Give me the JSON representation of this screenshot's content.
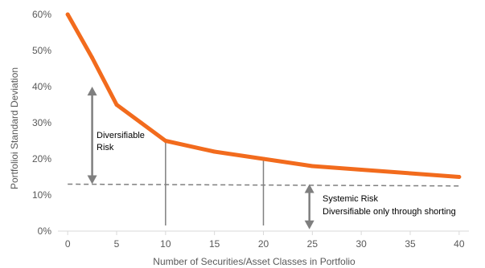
{
  "chart_data": {
    "type": "line",
    "title": "",
    "xlabel": "Number of Securities/Asset Classes in Portfolio",
    "ylabel": "Portfolioi Standard Deviation",
    "xlim": [
      -1,
      41
    ],
    "ylim": [
      0,
      60
    ],
    "x_ticks": [
      0,
      5,
      10,
      15,
      20,
      25,
      30,
      35,
      40
    ],
    "x_tick_labels": [
      "0",
      "5",
      "10",
      "15",
      "20",
      "25",
      "30",
      "35",
      "40"
    ],
    "y_ticks": [
      0,
      10,
      20,
      30,
      40,
      50,
      60
    ],
    "y_tick_labels": [
      "0%",
      "10%",
      "20%",
      "30%",
      "40%",
      "50%",
      "60%"
    ],
    "grid": false,
    "legend": "none",
    "series": [
      {
        "color": "#f26b1d",
        "x": [
          0,
          2.5,
          5,
          7.5,
          10,
          15,
          20,
          25,
          30,
          35,
          40
        ],
        "y": [
          60,
          48,
          35,
          30,
          25,
          22,
          20,
          18,
          17,
          16,
          15
        ]
      }
    ],
    "systemic_line": {
      "x": [
        0,
        40
      ],
      "y": [
        13,
        12.5
      ],
      "color": "#7f7f7f"
    },
    "vertical_lines": [
      {
        "x": 10,
        "y_top": 25
      },
      {
        "x": 20,
        "y_top": 20.2
      }
    ],
    "arrows": [
      {
        "x": 2.5,
        "y_from": 40,
        "y_to": 13
      },
      {
        "x": 24.7,
        "y_from": 13,
        "y_to": 0.5
      }
    ],
    "annotations": [
      {
        "lines": [
          "Diversifiable",
          "Risk"
        ]
      },
      {
        "lines": [
          "Systemic Risk",
          "Diversifiable only through shorting"
        ]
      }
    ]
  }
}
